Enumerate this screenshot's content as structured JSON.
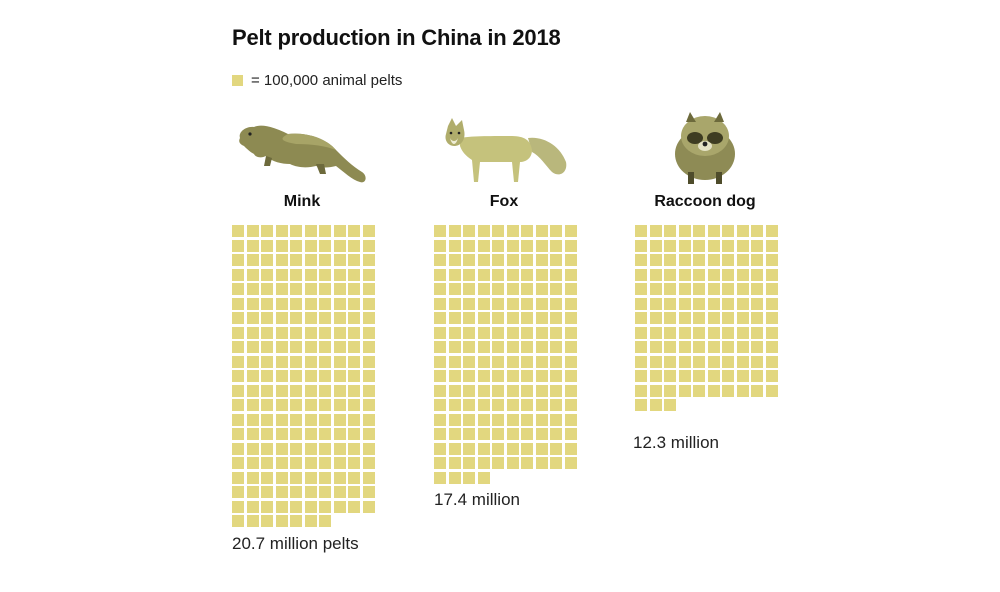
{
  "title": "Pelt production in China in 2018",
  "legend": {
    "unit_label": "= 100,000 animal pelts"
  },
  "colors": {
    "square": "#e2d77f",
    "fur_light": "#c5c27c",
    "fur_dark": "#6d6a3c"
  },
  "chart_data": {
    "type": "waffle",
    "title": "Pelt production in China in 2018",
    "unit": "100,000 animal pelts per square",
    "columns_per_group": 10,
    "categories": [
      "Mink",
      "Fox",
      "Raccoon dog"
    ],
    "values": [
      20.7,
      17.4,
      12.3
    ],
    "value_units": "million pelts",
    "squares": [
      207,
      174,
      123
    ],
    "annotations": [
      "20.7 million pelts",
      "17.4 million",
      "12.3 million"
    ],
    "icons": [
      "mink-icon",
      "fox-icon",
      "raccoon-dog-icon"
    ]
  }
}
